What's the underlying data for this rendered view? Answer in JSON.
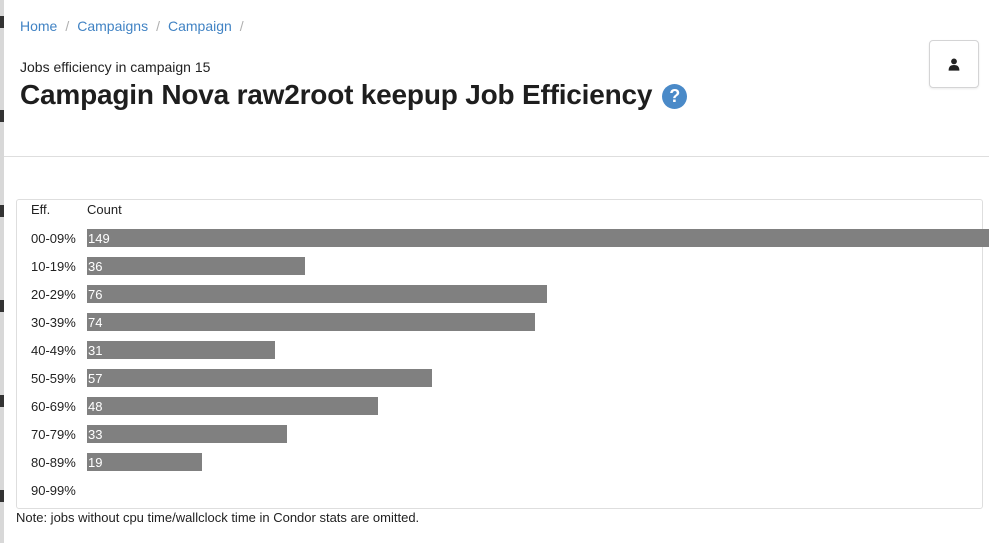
{
  "breadcrumb": {
    "items": [
      "Home",
      "Campaigns",
      "Campaign"
    ],
    "separator": "/"
  },
  "header": {
    "subtitle": "Jobs efficiency in campaign 15",
    "title": "Campagin Nova raw2root keepup Job Efficiency",
    "help_glyph": "?",
    "help_icon": "question-circle-icon",
    "user_icon": "user-icon"
  },
  "table": {
    "col_eff": "Eff.",
    "col_count": "Count",
    "max_count": 149
  },
  "chart_data": {
    "type": "bar",
    "orientation": "horizontal",
    "categories": [
      "00-09%",
      "10-19%",
      "20-29%",
      "30-39%",
      "40-49%",
      "50-59%",
      "60-69%",
      "70-79%",
      "80-89%",
      "90-99%"
    ],
    "values": [
      149,
      36,
      76,
      74,
      31,
      57,
      48,
      33,
      19,
      null
    ],
    "xlabel": "Count",
    "ylabel": "Eff."
  },
  "note": "Note: jobs without cpu time/wallclock time in Condor stats are omitted.",
  "colors": {
    "bar": "#808080",
    "link": "#4183c4",
    "help": "#4a8ac8"
  }
}
